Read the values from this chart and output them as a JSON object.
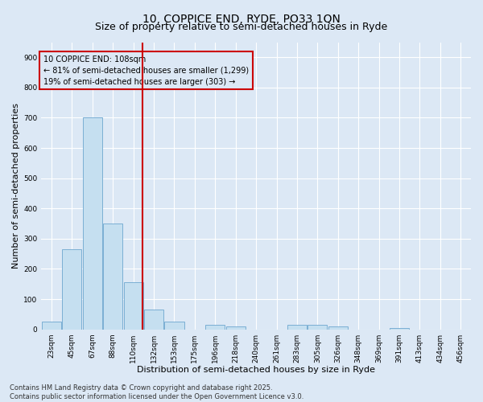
{
  "title": "10, COPPICE END, RYDE, PO33 1QN",
  "subtitle": "Size of property relative to semi-detached houses in Ryde",
  "xlabel": "Distribution of semi-detached houses by size in Ryde",
  "ylabel": "Number of semi-detached properties",
  "categories": [
    "23sqm",
    "45sqm",
    "67sqm",
    "88sqm",
    "110sqm",
    "132sqm",
    "153sqm",
    "175sqm",
    "196sqm",
    "218sqm",
    "240sqm",
    "261sqm",
    "283sqm",
    "305sqm",
    "326sqm",
    "348sqm",
    "369sqm",
    "391sqm",
    "413sqm",
    "434sqm",
    "456sqm"
  ],
  "values": [
    25,
    265,
    700,
    350,
    155,
    65,
    25,
    0,
    15,
    10,
    0,
    0,
    15,
    15,
    10,
    0,
    0,
    5,
    0,
    0,
    0
  ],
  "bar_color": "#c5dff0",
  "bar_edge_color": "#7bafd4",
  "vline_index": 4,
  "vline_color": "#cc0000",
  "annotation_line1": "10 COPPICE END: 108sqm",
  "annotation_line2": "← 81% of semi-detached houses are smaller (1,299)",
  "annotation_line3": "19% of semi-detached houses are larger (303) →",
  "box_color": "#cc0000",
  "ylim": [
    0,
    950
  ],
  "yticks": [
    0,
    100,
    200,
    300,
    400,
    500,
    600,
    700,
    800,
    900
  ],
  "background_color": "#dce8f5",
  "grid_color": "#ffffff",
  "footer_line1": "Contains HM Land Registry data © Crown copyright and database right 2025.",
  "footer_line2": "Contains public sector information licensed under the Open Government Licence v3.0.",
  "title_fontsize": 10,
  "subtitle_fontsize": 9,
  "xlabel_fontsize": 8,
  "ylabel_fontsize": 8,
  "tick_fontsize": 6.5,
  "annotation_fontsize": 7,
  "footer_fontsize": 6
}
